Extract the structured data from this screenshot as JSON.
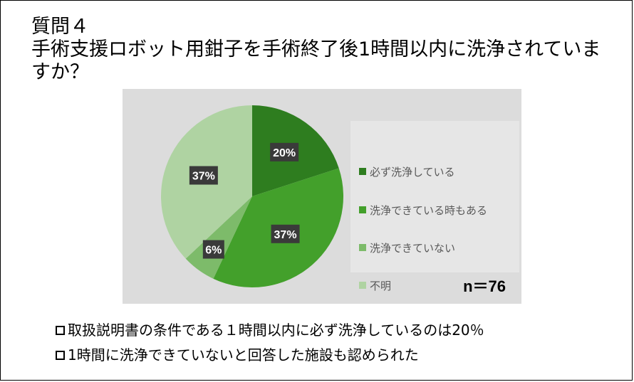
{
  "slide": {
    "title": "質問４\n手術支援ロボット用鉗子を手術終了後1時間以内に洗浄されていますか？",
    "sample_size": "n＝76"
  },
  "chart_data": {
    "type": "pie",
    "categories": [
      "必ず洗浄している",
      "洗浄できている時もある",
      "洗浄できていない",
      "不明"
    ],
    "values": [
      20,
      37,
      6,
      37
    ],
    "data_labels": [
      "20%",
      "37%",
      "6%",
      "37%"
    ],
    "colors": [
      "#2e7d1f",
      "#43a02b",
      "#7dbb6a",
      "#afd3a2"
    ],
    "legend_position": "right"
  },
  "notes": [
    "取扱説明書の条件である１時間以内に必ず洗浄しているのは20％",
    "1時間に洗浄できていないと回答した施設も認められた"
  ]
}
